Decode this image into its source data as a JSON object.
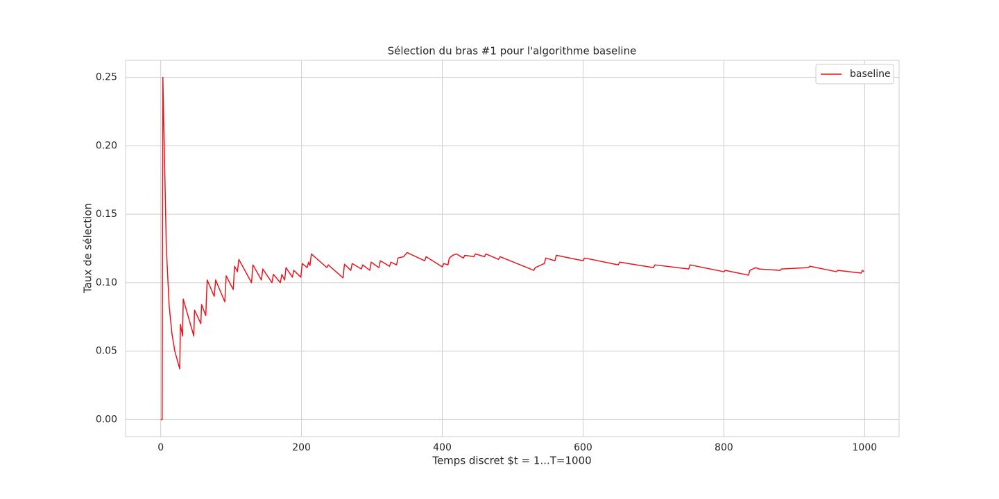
{
  "chart_data": {
    "type": "line",
    "title": "Sélection du bras #1 pour l'algorithme baseline",
    "xlabel": "Temps discret $t = 1...T=1000",
    "ylabel": "Taux de sélection",
    "x": [
      0,
      2,
      3,
      5,
      8,
      12,
      16,
      20,
      27,
      28,
      31,
      32,
      47,
      48,
      57,
      58,
      64,
      66,
      76,
      78,
      91,
      93,
      103,
      105,
      109,
      111,
      129,
      131,
      143,
      145,
      158,
      160,
      170,
      172,
      176,
      178,
      187,
      189,
      199,
      201,
      208,
      210,
      212,
      214,
      236,
      238,
      259,
      261,
      270,
      272,
      285,
      287,
      297,
      299,
      310,
      312,
      325,
      327,
      335,
      337,
      345,
      350,
      375,
      377,
      400,
      402,
      408,
      410,
      415,
      420,
      430,
      432,
      445,
      447,
      460,
      462,
      480,
      482,
      530,
      532,
      545,
      547,
      560,
      562,
      600,
      602,
      650,
      652,
      700,
      702,
      750,
      752,
      800,
      802,
      835,
      837,
      845,
      850,
      880,
      882,
      920,
      922,
      960,
      962,
      995,
      997,
      999
    ],
    "series": [
      {
        "name": "baseline",
        "color": "#e8141c",
        "values": [
          0,
          0,
          0.25,
          0.2,
          0.125,
          0.083,
          0.0625,
          0.05,
          0.037,
          0.0695,
          0.061,
          0.088,
          0.061,
          0.08,
          0.07,
          0.084,
          0.076,
          0.102,
          0.09,
          0.102,
          0.086,
          0.105,
          0.095,
          0.112,
          0.108,
          0.117,
          0.1,
          0.113,
          0.102,
          0.11,
          0.1,
          0.106,
          0.1,
          0.106,
          0.102,
          0.111,
          0.104,
          0.109,
          0.104,
          0.114,
          0.111,
          0.115,
          0.1125,
          0.121,
          0.111,
          0.113,
          0.1035,
          0.1135,
          0.109,
          0.114,
          0.11,
          0.113,
          0.109,
          0.115,
          0.111,
          0.116,
          0.112,
          0.115,
          0.113,
          0.118,
          0.119,
          0.122,
          0.116,
          0.119,
          0.1115,
          0.114,
          0.113,
          0.118,
          0.12,
          0.121,
          0.118,
          0.12,
          0.119,
          0.121,
          0.119,
          0.121,
          0.117,
          0.119,
          0.109,
          0.111,
          0.114,
          0.118,
          0.116,
          0.12,
          0.116,
          0.118,
          0.113,
          0.115,
          0.111,
          0.113,
          0.11,
          0.113,
          0.108,
          0.109,
          0.1055,
          0.109,
          0.111,
          0.11,
          0.109,
          0.11,
          0.111,
          0.112,
          0.108,
          0.109,
          0.107,
          0.109,
          0.108
        ]
      }
    ],
    "xlim": [
      -49.95,
      1048.95
    ],
    "ylim": [
      -0.0125,
      0.2625
    ],
    "xticks": [
      0,
      200,
      400,
      600,
      800,
      1000
    ],
    "yticks": [
      {
        "value": 0,
        "label": "0.00"
      },
      0.05,
      {
        "value": 0.1,
        "label": "0.10"
      },
      0.15,
      {
        "value": 0.2,
        "label": "0.20"
      },
      0.25
    ],
    "grid": true,
    "legend": "upper right"
  }
}
